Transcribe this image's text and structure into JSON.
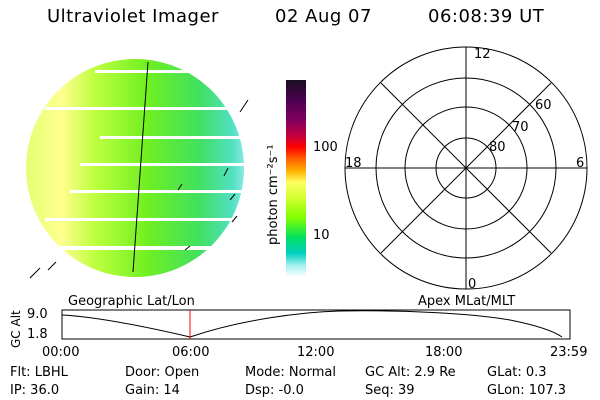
{
  "header": {
    "title": "Ultraviolet Imager",
    "date": "02 Aug 07",
    "time": "06:08:39 UT"
  },
  "colorbar": {
    "label": "photon cm⁻²s⁻¹",
    "ticks": [
      "100",
      "10"
    ],
    "colors": [
      "#1a1020",
      "#4a0050",
      "#800060",
      "#c00040",
      "#ff0000",
      "#ff6000",
      "#ffb000",
      "#ffff60",
      "#d0ff30",
      "#80ff00",
      "#00e060",
      "#00d0c0",
      "#a0f0f0",
      "#ffffff"
    ]
  },
  "polar_plot": {
    "mlt_labels": [
      "12",
      "18",
      "6",
      "0"
    ],
    "lat_labels": [
      "60",
      "70",
      "80"
    ]
  },
  "timeline": {
    "left_label": "Geographic Lat/Lon",
    "right_label": "Apex MLat/MLT",
    "axis_title": "GC Alt",
    "y_ticks": [
      "9.0",
      "1.8"
    ],
    "x_ticks": [
      "00:00",
      "06:00",
      "12:00",
      "18:00",
      "23:59"
    ],
    "marker_color": "#ff0000"
  },
  "status": {
    "row1": {
      "flt": "Flt: LBHL",
      "door": "Door: Open",
      "mode": "Mode: Normal",
      "gc_alt": "GC Alt: 2.9 Re",
      "glat": "GLat:    0.3"
    },
    "row2": {
      "ip": "IP: 36.0",
      "gain": "Gain: 14",
      "dsp": "Dsp:    -0.0",
      "seq": "Seq: 39",
      "glon": "GLon: 107.3"
    }
  }
}
